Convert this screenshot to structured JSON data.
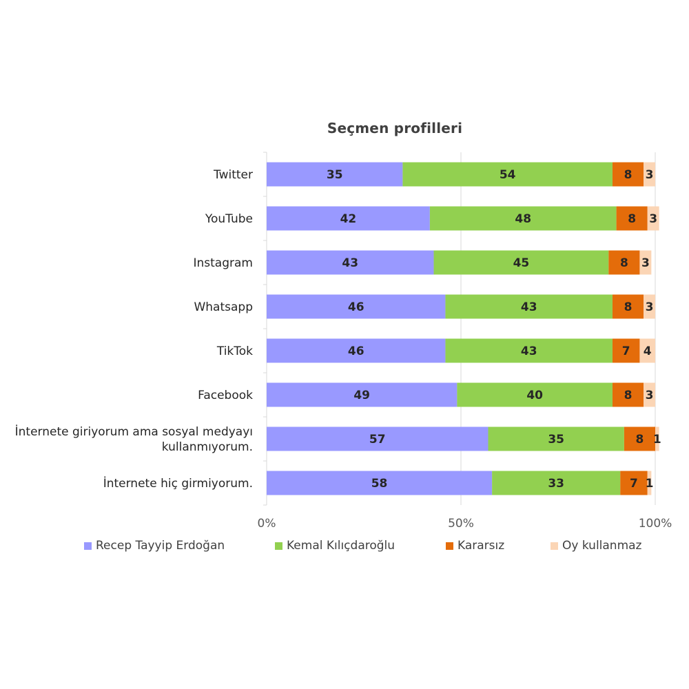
{
  "chart_data": {
    "type": "bar",
    "orientation": "horizontal",
    "stacked": true,
    "title": "Seçmen profilleri",
    "xlabel": "",
    "ylabel": "",
    "xlim": [
      0,
      100
    ],
    "x_ticks": [
      "0%",
      "50%",
      "100%"
    ],
    "grid": true,
    "legend_position": "bottom",
    "categories": [
      "Twitter",
      "YouTube",
      "Instagram",
      "Whatsapp",
      "TikTok",
      "Facebook",
      "İnternete giriyorum ama sosyal medyayı kullanmıyorum.",
      "İnternete hiç girmiyorum."
    ],
    "category_lines": [
      [
        "Twitter"
      ],
      [
        "YouTube"
      ],
      [
        "Instagram"
      ],
      [
        "Whatsapp"
      ],
      [
        "TikTok"
      ],
      [
        "Facebook"
      ],
      [
        "İnternete giriyorum ama sosyal medyayı",
        "kullanmıyorum."
      ],
      [
        "İnternete hiç girmiyorum."
      ]
    ],
    "series": [
      {
        "name": "Recep Tayyip Erdoğan",
        "color": "#9999ff",
        "values": [
          35,
          42,
          43,
          46,
          46,
          49,
          57,
          58
        ]
      },
      {
        "name": "Kemal Kılıçdaroğlu",
        "color": "#92d050",
        "values": [
          54,
          48,
          45,
          43,
          43,
          40,
          35,
          33
        ]
      },
      {
        "name": "Kararsız",
        "color": "#e46c0a",
        "values": [
          8,
          8,
          8,
          8,
          7,
          8,
          8,
          7
        ]
      },
      {
        "name": "Oy kullanmaz",
        "color": "#fbd5b5",
        "values": [
          3,
          3,
          3,
          3,
          4,
          3,
          1,
          1
        ]
      }
    ]
  }
}
